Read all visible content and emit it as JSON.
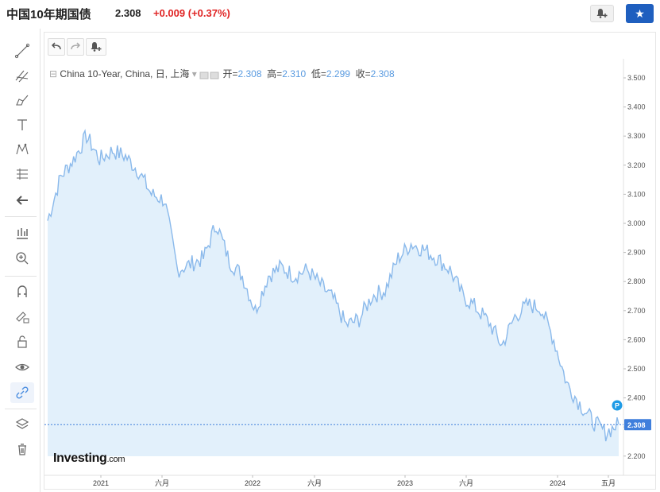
{
  "header": {
    "title": "中国10年期国债",
    "price": "2.308",
    "change": "+0.009 (+0.37%)"
  },
  "toolbar": {
    "icons": [
      "trend-line-icon",
      "fib-icon",
      "brush-icon",
      "text-icon",
      "pattern-icon",
      "prediction-icon",
      "back-arrow-icon",
      "measure-icon",
      "zoom-in-icon",
      "magnet-icon",
      "lock-draw-icon",
      "lock-icon",
      "eye-icon",
      "link-icon",
      "layers-icon",
      "trash-icon"
    ]
  },
  "legend": {
    "symbol": "China 10-Year, China, 日, 上海",
    "open_label": "开=",
    "open": "2.308",
    "high_label": "高=",
    "high": "2.310",
    "low_label": "低=",
    "low": "2.299",
    "close_label": "收=",
    "close": "2.308"
  },
  "brand": {
    "main": "Investing",
    "suffix": ".com"
  },
  "colors": {
    "line": "#8ab9eb",
    "area": "#e2f0fb",
    "last_price_bg": "#3f7fdc",
    "marker": "#1e9be6"
  },
  "chart_data": {
    "type": "area",
    "ylim": [
      2.16,
      3.53
    ],
    "y_ticks": [
      "3.500",
      "3.400",
      "3.300",
      "3.200",
      "3.100",
      "3.000",
      "2.900",
      "2.800",
      "2.700",
      "2.600",
      "2.500",
      "2.400",
      "2.300",
      "2.200"
    ],
    "x_ticks": [
      "2021",
      "六月",
      "2022",
      "六月",
      "2023",
      "六月",
      "2024",
      "五月"
    ],
    "last_price_label": "2.308",
    "marker_label": "P",
    "x": [
      "2020-09",
      "2020-10",
      "2020-11",
      "2020-12",
      "2021-01",
      "2021-02",
      "2021-03",
      "2021-04",
      "2021-05",
      "2021-06",
      "2021-07",
      "2021-08",
      "2021-09",
      "2021-10",
      "2021-11",
      "2021-12",
      "2022-01",
      "2022-02",
      "2022-03",
      "2022-04",
      "2022-05",
      "2022-06",
      "2022-07",
      "2022-08",
      "2022-09",
      "2022-10",
      "2022-11",
      "2022-12",
      "2023-01",
      "2023-02",
      "2023-03",
      "2023-04",
      "2023-05",
      "2023-06",
      "2023-07",
      "2023-08",
      "2023-09",
      "2023-10",
      "2023-11",
      "2023-12",
      "2024-01",
      "2024-02",
      "2024-03",
      "2024-04",
      "2024-05"
    ],
    "values": [
      3.01,
      3.16,
      3.22,
      3.3,
      3.22,
      3.25,
      3.23,
      3.18,
      3.1,
      3.08,
      2.84,
      2.86,
      2.88,
      3.0,
      2.87,
      2.82,
      2.7,
      2.82,
      2.85,
      2.82,
      2.84,
      2.79,
      2.74,
      2.65,
      2.67,
      2.75,
      2.77,
      2.88,
      2.93,
      2.91,
      2.88,
      2.84,
      2.75,
      2.71,
      2.66,
      2.58,
      2.68,
      2.72,
      2.71,
      2.6,
      2.45,
      2.38,
      2.32,
      2.28,
      2.31
    ]
  }
}
